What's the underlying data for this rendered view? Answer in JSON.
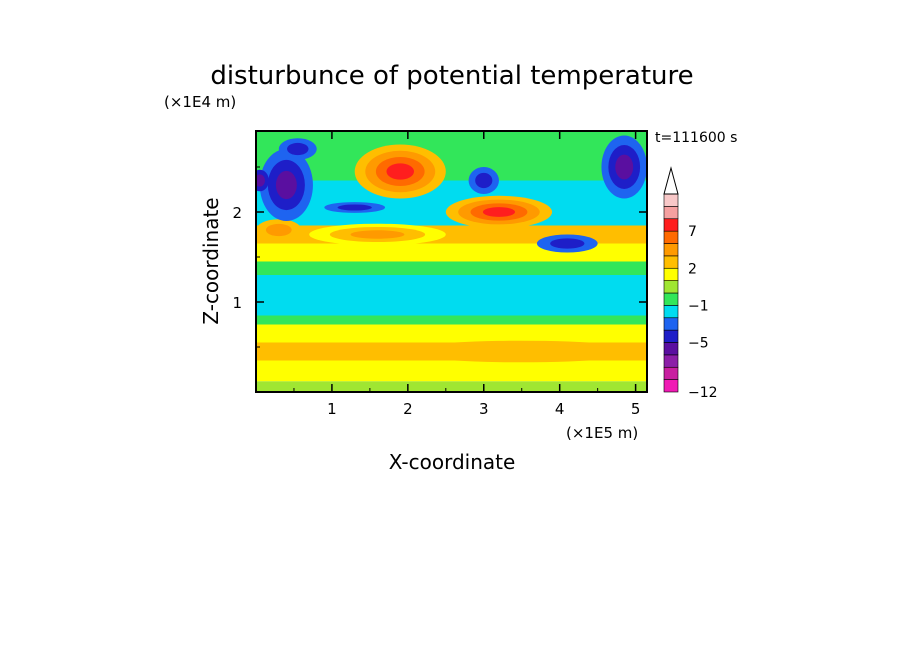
{
  "chart_data": {
    "type": "heatmap",
    "title": "disturbunce of potential temperature",
    "xlabel": "X-coordinate",
    "ylabel": "Z-coordinate",
    "x_unit": "(×1E5 m)",
    "y_unit": "(×1E4 m)",
    "time_label": "t=111600 s",
    "xlim": [
      0,
      5.15
    ],
    "ylim": [
      0,
      2.9
    ],
    "x_ticks": [
      "1",
      "2",
      "3",
      "4",
      "5"
    ],
    "y_ticks": [
      "1",
      "2"
    ],
    "colorbar": {
      "labels": [
        "7",
        "2",
        "−1",
        "−5",
        "−12"
      ],
      "levels_low_to_high": [
        "#f01ab4",
        "#c81ea0",
        "#8c1ea8",
        "#5a0fa0",
        "#1e1ec8",
        "#1e64f0",
        "#00dcf0",
        "#32e65a",
        "#a0e632",
        "#ffff00",
        "#ffbe00",
        "#ff9a00",
        "#ff6a00",
        "#ff1e1e",
        "#f5a0a0",
        "#f8c8c8"
      ]
    },
    "grid": false,
    "field_note": "contour-filled field; values sampled as colour levels",
    "bands": [
      {
        "z": [
          0.0,
          0.12
        ],
        "level": "#a0e632"
      },
      {
        "z": [
          0.12,
          0.35
        ],
        "level": "#ffff00"
      },
      {
        "z": [
          0.35,
          0.55
        ],
        "level": "#ffbe00"
      },
      {
        "z": [
          0.55,
          0.75
        ],
        "level": "#ffff00"
      },
      {
        "z": [
          0.75,
          0.85
        ],
        "level": "#32e65a"
      },
      {
        "z": [
          0.85,
          1.3
        ],
        "level": "#00dcf0"
      },
      {
        "z": [
          1.3,
          1.45
        ],
        "level": "#32e65a"
      },
      {
        "z": [
          1.45,
          1.65
        ],
        "level": "#ffff00"
      },
      {
        "z": [
          1.65,
          1.85
        ],
        "level": "#ffbe00"
      },
      {
        "z": [
          1.85,
          2.05
        ],
        "level": "#00dcf0"
      },
      {
        "z": [
          2.05,
          2.35
        ],
        "level": "#00dcf0"
      },
      {
        "z": [
          2.35,
          2.9
        ],
        "level": "#32e65a"
      }
    ],
    "blobs": [
      {
        "x": 1.9,
        "z": 2.45,
        "rx": 0.6,
        "rz": 0.3,
        "levels": [
          "#ffbe00",
          "#ff9a00",
          "#ff6a00",
          "#ff1e1e"
        ]
      },
      {
        "x": 3.2,
        "z": 2.0,
        "rx": 0.7,
        "rz": 0.18,
        "levels": [
          "#ffbe00",
          "#ff9a00",
          "#ff6a00",
          "#ff1e1e"
        ]
      },
      {
        "x": 1.6,
        "z": 1.75,
        "rx": 0.9,
        "rz": 0.12,
        "levels": [
          "#ffff00",
          "#ffbe00",
          "#ff9a00"
        ]
      },
      {
        "x": 0.3,
        "z": 1.8,
        "rx": 0.3,
        "rz": 0.12,
        "levels": [
          "#ffbe00",
          "#ff9a00"
        ]
      },
      {
        "x": 3.5,
        "z": 0.45,
        "rx": 1.6,
        "rz": 0.12,
        "levels": [
          "#ffbe00"
        ]
      },
      {
        "x": 0.4,
        "z": 2.3,
        "rx": 0.35,
        "rz": 0.4,
        "levels": [
          "#1e64f0",
          "#1e1ec8",
          "#5a0fa0"
        ]
      },
      {
        "x": 0.55,
        "z": 2.7,
        "rx": 0.25,
        "rz": 0.12,
        "levels": [
          "#1e64f0",
          "#1e1ec8"
        ]
      },
      {
        "x": 4.1,
        "z": 1.65,
        "rx": 0.4,
        "rz": 0.1,
        "levels": [
          "#1e64f0",
          "#1e1ec8"
        ]
      },
      {
        "x": 3.0,
        "z": 2.35,
        "rx": 0.2,
        "rz": 0.15,
        "levels": [
          "#1e64f0",
          "#1e1ec8"
        ]
      },
      {
        "x": 1.3,
        "z": 2.05,
        "rx": 0.4,
        "rz": 0.06,
        "levels": [
          "#1e64f0",
          "#1e1ec8"
        ]
      },
      {
        "x": 4.85,
        "z": 2.5,
        "rx": 0.3,
        "rz": 0.35,
        "levels": [
          "#1e64f0",
          "#1e1ec8",
          "#5a0fa0"
        ]
      },
      {
        "x": 0.05,
        "z": 2.35,
        "rx": 0.12,
        "rz": 0.12,
        "levels": [
          "#1e1ec8",
          "#5a0fa0"
        ]
      }
    ]
  }
}
